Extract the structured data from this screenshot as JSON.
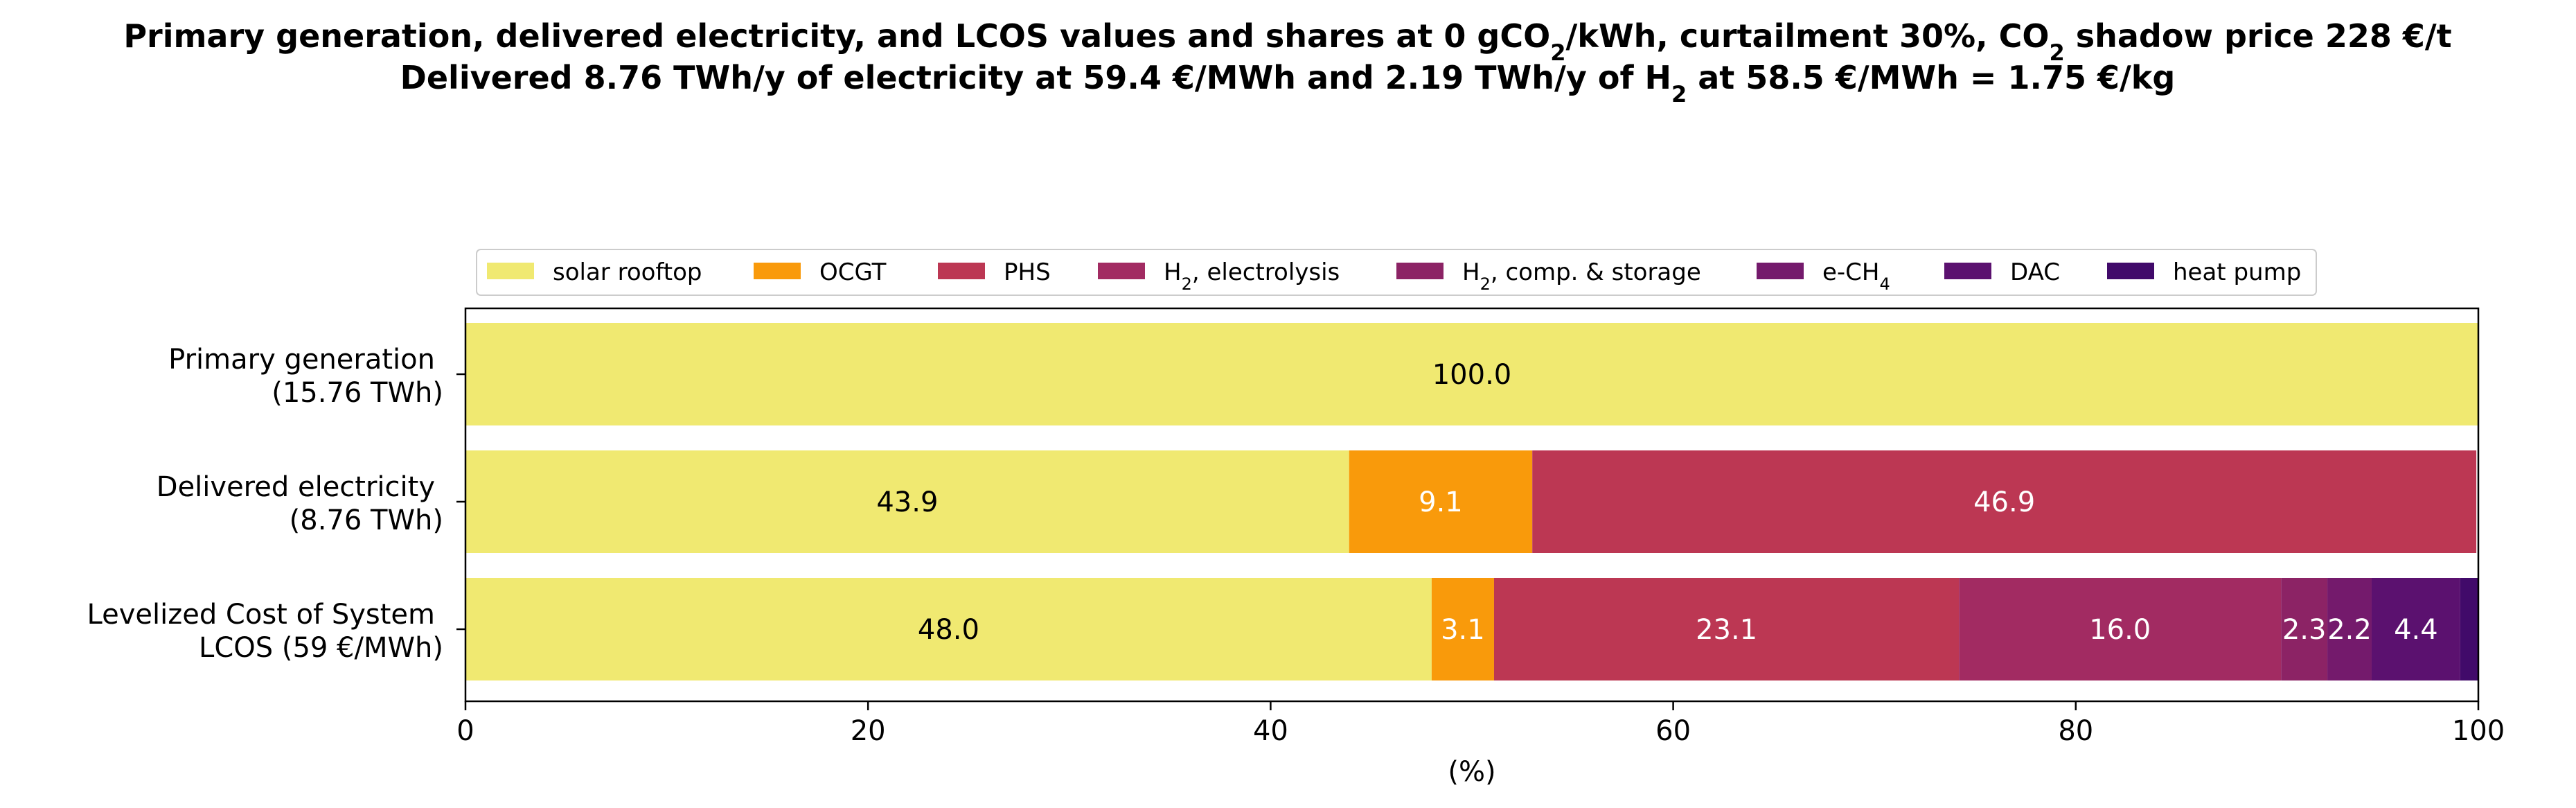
{
  "chart_data": {
    "type": "bar",
    "orientation": "horizontal",
    "stacked": true,
    "title": {
      "line1": [
        {
          "t": "Primary generation, delivered electricity, and LCOS values and shares at 0 gCO"
        },
        {
          "t": "2",
          "sub": true
        },
        {
          "t": "/kWh, curtailment 30%, CO"
        },
        {
          "t": "2",
          "sub": true
        },
        {
          "t": " shadow price 228 €/t"
        }
      ],
      "line2": [
        {
          "t": "Delivered 8.76 TWh/y of electricity at 59.4 €/MWh and 2.19 TWh/y of H"
        },
        {
          "t": "2",
          "sub": true
        },
        {
          "t": " at 58.5 €/MWh = 1.75 €/kg"
        }
      ]
    },
    "xlabel": "(%)",
    "xlim": [
      0,
      100
    ],
    "xticks": [
      0,
      20,
      40,
      60,
      80,
      100
    ],
    "legend_position": "top-center",
    "categories": [
      [
        "Primary generation",
        "(15.76 TWh)"
      ],
      [
        "Delivered electricity",
        "(8.76 TWh)"
      ],
      [
        "Levelized Cost of System",
        "LCOS  (59 €/MWh)"
      ]
    ],
    "series": [
      {
        "name": [
          {
            "t": "solar rooftop"
          }
        ],
        "color": "#f0e971",
        "label_color": "#000000",
        "values": [
          100.0,
          43.9,
          48.0
        ],
        "labels": [
          "100.0",
          "43.9",
          "48.0"
        ]
      },
      {
        "name": [
          {
            "t": "OCGT"
          }
        ],
        "color": "#f99a0b",
        "label_color": "#ffffff",
        "values": [
          0,
          9.1,
          3.1
        ],
        "labels": [
          "",
          "9.1",
          "3.1"
        ]
      },
      {
        "name": [
          {
            "t": "PHS"
          }
        ],
        "color": "#bc3753",
        "label_color": "#ffffff",
        "values": [
          0,
          46.9,
          23.1
        ],
        "labels": [
          "",
          "46.9",
          "23.1"
        ]
      },
      {
        "name": [
          {
            "t": "H"
          },
          {
            "t": "2",
            "sub": true
          },
          {
            "t": ", electrolysis"
          }
        ],
        "color": "#a22b62",
        "label_color": "#ffffff",
        "values": [
          0,
          0,
          16.0
        ],
        "labels": [
          "",
          "",
          "16.0"
        ]
      },
      {
        "name": [
          {
            "t": "H"
          },
          {
            "t": "2",
            "sub": true
          },
          {
            "t": ", comp. & storage"
          }
        ],
        "color": "#8c2365",
        "label_color": "#ffffff",
        "values": [
          0,
          0,
          2.3
        ],
        "labels": [
          "",
          "",
          "2.3"
        ]
      },
      {
        "name": [
          {
            "t": "e-CH"
          },
          {
            "t": "4",
            "sub": true
          }
        ],
        "color": "#741a6c",
        "label_color": "#ffffff",
        "values": [
          0,
          0,
          2.2
        ],
        "labels": [
          "",
          "",
          "2.2"
        ]
      },
      {
        "name": [
          {
            "t": "DAC"
          }
        ],
        "color": "#5b116f",
        "label_color": "#ffffff",
        "values": [
          0,
          0,
          4.4
        ],
        "labels": [
          "",
          "",
          "4.4"
        ]
      },
      {
        "name": [
          {
            "t": "heat pump"
          }
        ],
        "color": "#410a6a",
        "label_color": "#ffffff",
        "values": [
          0,
          0,
          0.9
        ],
        "labels": [
          "",
          "",
          ""
        ]
      }
    ]
  }
}
